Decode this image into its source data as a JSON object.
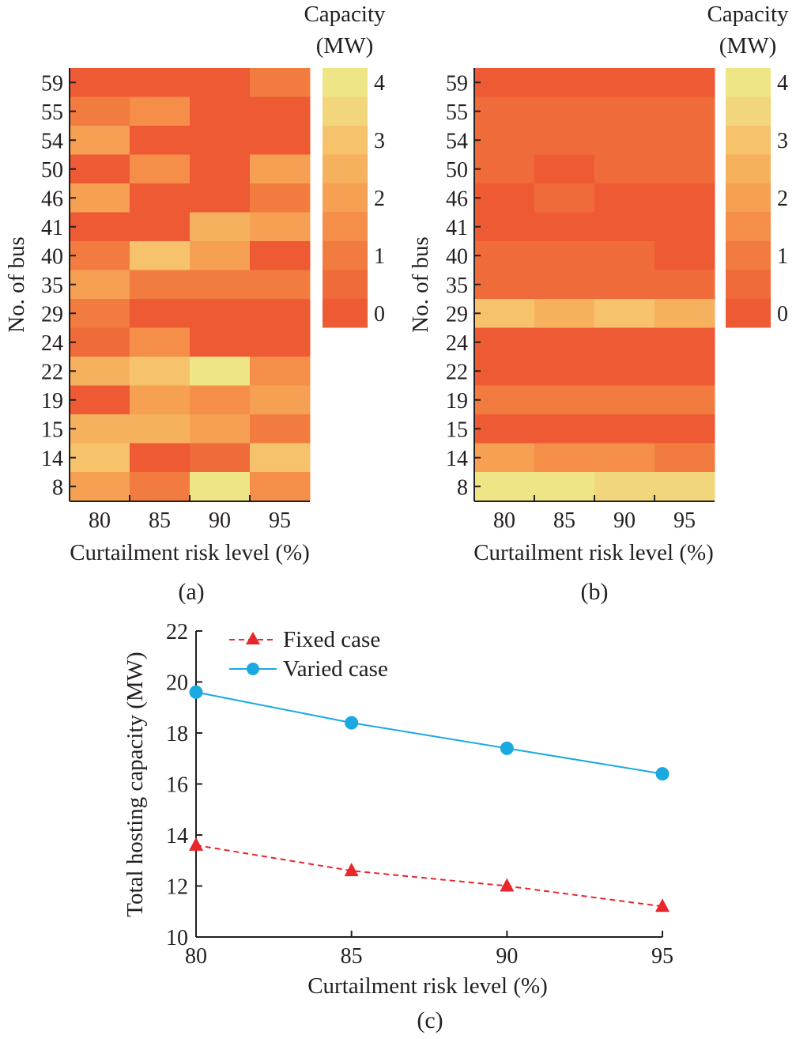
{
  "colors": {
    "scale": [
      "#ee5a34",
      "#f06b3a",
      "#f27c40",
      "#f48e48",
      "#f5a052",
      "#f6b15e",
      "#f6c36c",
      "#f2d67b",
      "#eee686"
    ],
    "fixed_case": "#e8262b",
    "varied_case": "#1ba9e1",
    "axis": "#231f20"
  },
  "chart_data": [
    {
      "type": "heatmap",
      "panel_label": "(a)",
      "xlabel": "Curtailment risk level (%)",
      "ylabel": "No. of bus",
      "x_categories": [
        "80",
        "85",
        "90",
        "95"
      ],
      "y_categories": [
        "59",
        "55",
        "54",
        "50",
        "46",
        "41",
        "40",
        "35",
        "29",
        "24",
        "22",
        "19",
        "15",
        "14",
        "8"
      ],
      "colorbar": {
        "title_line1": "Capacity",
        "title_line2": "(MW)",
        "ticks": [
          "4",
          "3",
          "2",
          "1",
          "0"
        ],
        "range": [
          0,
          4.5
        ]
      },
      "values": [
        [
          0.0,
          0.0,
          0.0,
          1.0
        ],
        [
          1.0,
          1.8,
          0.0,
          0.0
        ],
        [
          2.0,
          0.0,
          0.0,
          0.0
        ],
        [
          0.0,
          1.8,
          0.0,
          2.4
        ],
        [
          2.4,
          0.0,
          0.0,
          1.2
        ],
        [
          0.0,
          0.0,
          2.6,
          2.4
        ],
        [
          1.2,
          3.4,
          2.0,
          0.0
        ],
        [
          2.2,
          1.4,
          1.2,
          1.2
        ],
        [
          1.0,
          0.3,
          0.0,
          0.0
        ],
        [
          0.6,
          1.8,
          0.0,
          0.0
        ],
        [
          2.8,
          3.2,
          4.3,
          1.6
        ],
        [
          0.0,
          2.4,
          1.6,
          2.2
        ],
        [
          2.8,
          2.8,
          2.0,
          1.2
        ],
        [
          3.2,
          0.0,
          0.6,
          3.0
        ],
        [
          2.2,
          1.0,
          4.0,
          1.8
        ]
      ]
    },
    {
      "type": "heatmap",
      "panel_label": "(b)",
      "xlabel": "Curtailment risk level (%)",
      "ylabel": "No. of bus",
      "x_categories": [
        "80",
        "85",
        "90",
        "95"
      ],
      "y_categories": [
        "59",
        "55",
        "54",
        "50",
        "46",
        "41",
        "40",
        "35",
        "29",
        "24",
        "22",
        "19",
        "15",
        "14",
        "8"
      ],
      "colorbar": {
        "title_line1": "Capacity",
        "title_line2": "(MW)",
        "ticks": [
          "4",
          "3",
          "2",
          "1",
          "0"
        ],
        "range": [
          0,
          4.5
        ]
      },
      "values": [
        [
          0.2,
          0.2,
          0.2,
          0.2
        ],
        [
          0.8,
          0.6,
          0.6,
          0.6
        ],
        [
          0.8,
          0.8,
          0.8,
          0.8
        ],
        [
          0.8,
          0.4,
          0.6,
          0.6
        ],
        [
          0.2,
          0.6,
          0.2,
          0.2
        ],
        [
          0.2,
          0.2,
          0.2,
          0.2
        ],
        [
          0.6,
          0.6,
          0.6,
          0.4
        ],
        [
          0.8,
          0.8,
          0.8,
          0.8
        ],
        [
          3.2,
          2.8,
          3.0,
          2.6
        ],
        [
          0.2,
          0.2,
          0.2,
          0.2
        ],
        [
          0.4,
          0.4,
          0.4,
          0.4
        ],
        [
          1.4,
          1.2,
          1.2,
          1.2
        ],
        [
          0.0,
          0.0,
          0.0,
          0.0
        ],
        [
          2.0,
          1.6,
          1.6,
          1.4
        ],
        [
          4.2,
          4.2,
          3.8,
          3.6
        ]
      ]
    },
    {
      "type": "line",
      "panel_label": "(c)",
      "xlabel": "Curtailment risk level (%)",
      "ylabel": "Total hosting capacity (MW)",
      "x": [
        80,
        85,
        90,
        95
      ],
      "xlim": [
        80,
        95
      ],
      "ylim": [
        10,
        22
      ],
      "x_ticks": [
        "80",
        "85",
        "90",
        "95"
      ],
      "y_ticks": [
        "10",
        "12",
        "14",
        "16",
        "18",
        "20",
        "22"
      ],
      "legend_position": "top-left",
      "series": [
        {
          "name": "Fixed case",
          "marker": "triangle",
          "style": "dashed",
          "values": [
            13.6,
            12.6,
            12.0,
            11.2
          ]
        },
        {
          "name": "Varied case",
          "marker": "circle",
          "style": "solid",
          "values": [
            19.6,
            18.4,
            17.4,
            16.4
          ]
        }
      ]
    }
  ]
}
